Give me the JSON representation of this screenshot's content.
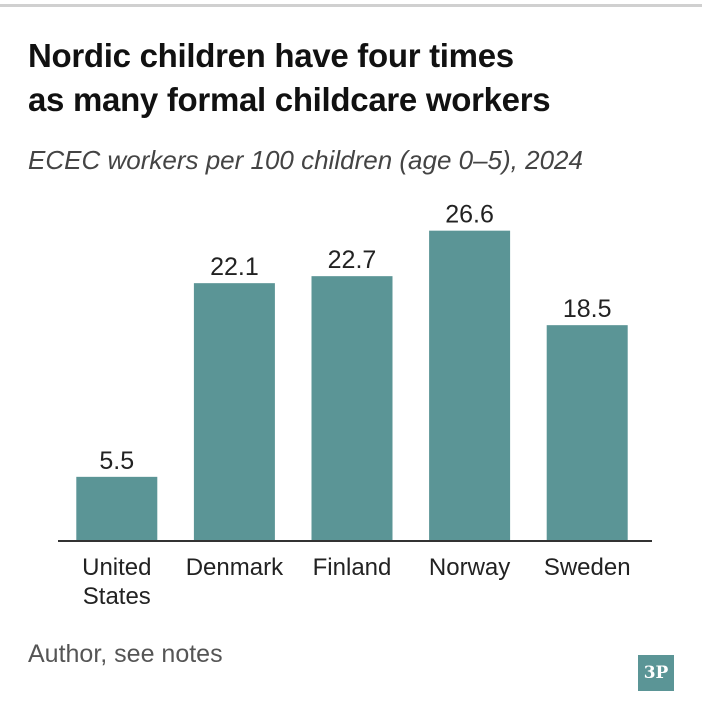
{
  "header": {
    "title_line1": "Nordic children have four times",
    "title_line2": "as many formal childcare workers",
    "subtitle": "ECEC workers per 100 children (age 0–5), 2024"
  },
  "footer": {
    "source": "Author, see notes",
    "logo": "3P"
  },
  "colors": {
    "bar": "#5b9596",
    "axis": "#333333",
    "text": "#222222"
  },
  "chart_data": {
    "type": "bar",
    "title": "Nordic children have four times as many formal childcare workers",
    "subtitle": "ECEC workers per 100 children (age 0–5), 2024",
    "categories": [
      [
        "United",
        "States"
      ],
      [
        "Denmark"
      ],
      [
        "Finland"
      ],
      [
        "Norway"
      ],
      [
        "Sweden"
      ]
    ],
    "values": [
      5.5,
      22.1,
      22.7,
      26.6,
      18.5
    ],
    "value_labels": [
      "5.5",
      "22.1",
      "22.7",
      "26.6",
      "18.5"
    ],
    "xlabel": "",
    "ylabel": "",
    "ylim": [
      0,
      27
    ],
    "grid": false,
    "legend": "none"
  }
}
